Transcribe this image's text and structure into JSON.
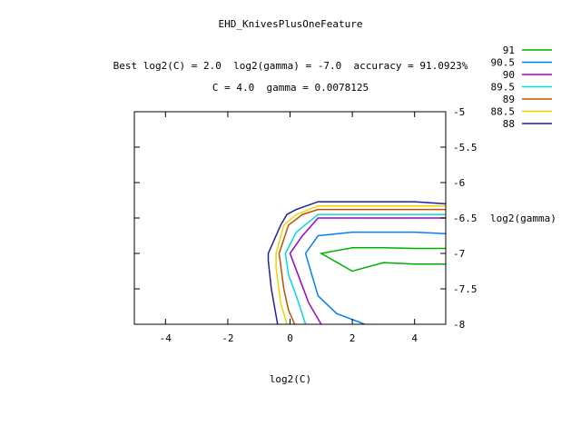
{
  "chart_data": {
    "type": "line",
    "title": "EHD_KnivesPlusOneFeature",
    "subtitle_line1": "Best log2(C) = 2.0  log2(gamma) = -7.0  accuracy = 91.0923%",
    "subtitle_line2": "C = 4.0  gamma = 0.0078125",
    "xlabel": "log2(C)",
    "ylabel": "log2(gamma)",
    "xlim": [
      -5,
      5
    ],
    "ylim": [
      -8,
      -5
    ],
    "xticks": [
      -4,
      -2,
      0,
      2,
      4
    ],
    "xtick_labels": [
      "-4",
      "-2",
      "0",
      "2",
      "4"
    ],
    "yticks": [
      -5,
      -5.5,
      -6,
      -6.5,
      -7,
      -7.5,
      -8
    ],
    "ytick_labels": [
      "-5",
      "-5.5",
      "-6",
      "-6.5",
      "-7",
      "-7.5",
      "-8"
    ],
    "grid": false,
    "legend_position": "top-right",
    "series": [
      {
        "name": "91",
        "color": "#00b000",
        "points": [
          [
            5,
            -7.15
          ],
          [
            4,
            -7.15
          ],
          [
            3,
            -7.13
          ],
          [
            2,
            -7.25
          ],
          [
            1,
            -7.0
          ],
          [
            2,
            -6.92
          ],
          [
            3,
            -6.92
          ],
          [
            4,
            -6.93
          ],
          [
            5,
            -6.93
          ]
        ]
      },
      {
        "name": "90.5",
        "color": "#0080ff",
        "points": [
          [
            2.4,
            -8
          ],
          [
            1.5,
            -7.85
          ],
          [
            0.9,
            -7.6
          ],
          [
            0.7,
            -7.3
          ],
          [
            0.5,
            -7.0
          ],
          [
            0.9,
            -6.75
          ],
          [
            2,
            -6.7
          ],
          [
            3,
            -6.7
          ],
          [
            4,
            -6.7
          ],
          [
            5,
            -6.72
          ]
        ]
      },
      {
        "name": "90",
        "color": "#a000d0",
        "points": [
          [
            1,
            -8
          ],
          [
            0.6,
            -7.7
          ],
          [
            0.3,
            -7.35
          ],
          [
            0,
            -7.0
          ],
          [
            0.4,
            -6.75
          ],
          [
            0.9,
            -6.5
          ],
          [
            2,
            -6.5
          ],
          [
            3,
            -6.5
          ],
          [
            4,
            -6.5
          ],
          [
            5,
            -6.5
          ]
        ]
      },
      {
        "name": "89.5",
        "color": "#00dcdc",
        "points": [
          [
            0.5,
            -8
          ],
          [
            0.2,
            -7.6
          ],
          [
            -0.05,
            -7.3
          ],
          [
            -0.15,
            -7.0
          ],
          [
            0.2,
            -6.7
          ],
          [
            0.9,
            -6.45
          ],
          [
            2,
            -6.45
          ],
          [
            3,
            -6.45
          ],
          [
            4,
            -6.45
          ],
          [
            5,
            -6.45
          ]
        ]
      },
      {
        "name": "89",
        "color": "#c05000",
        "points": [
          [
            0.15,
            -8
          ],
          [
            -0.05,
            -7.8
          ],
          [
            -0.2,
            -7.5
          ],
          [
            -0.35,
            -7.0
          ],
          [
            -0.05,
            -6.6
          ],
          [
            0.4,
            -6.45
          ],
          [
            0.9,
            -6.38
          ],
          [
            2,
            -6.38
          ],
          [
            3,
            -6.38
          ],
          [
            4,
            -6.38
          ],
          [
            5,
            -6.38
          ]
        ]
      },
      {
        "name": "88.5",
        "color": "#e8d800",
        "points": [
          [
            -0.1,
            -8
          ],
          [
            -0.3,
            -7.7
          ],
          [
            -0.45,
            -7.2
          ],
          [
            -0.45,
            -7.0
          ],
          [
            -0.2,
            -6.6
          ],
          [
            0.2,
            -6.45
          ],
          [
            0.9,
            -6.33
          ],
          [
            2,
            -6.33
          ],
          [
            3,
            -6.33
          ],
          [
            4,
            -6.33
          ],
          [
            5,
            -6.33
          ]
        ]
      },
      {
        "name": "88",
        "color": "#2020a0",
        "points": [
          [
            -0.4,
            -8
          ],
          [
            -0.6,
            -7.5
          ],
          [
            -0.7,
            -7.1
          ],
          [
            -0.7,
            -7.0
          ],
          [
            -0.3,
            -6.6
          ],
          [
            -0.1,
            -6.45
          ],
          [
            0.2,
            -6.38
          ],
          [
            0.9,
            -6.27
          ],
          [
            2,
            -6.27
          ],
          [
            3,
            -6.27
          ],
          [
            4,
            -6.27
          ],
          [
            5,
            -6.3
          ]
        ]
      }
    ]
  }
}
